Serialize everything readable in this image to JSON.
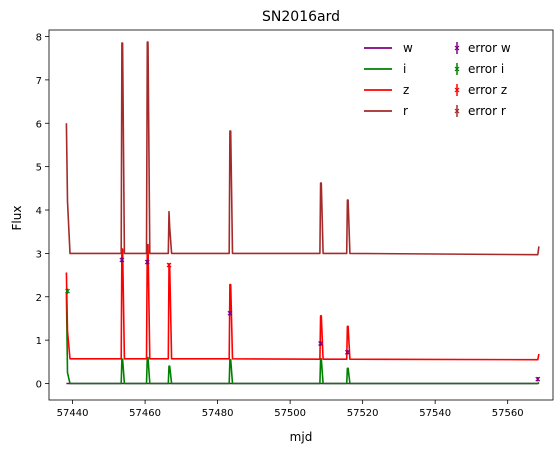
{
  "chart_data": {
    "type": "line",
    "title": "SN2016ard",
    "xlabel": "mjd",
    "ylabel": "Flux",
    "xlim": [
      57433.5,
      57572.5
    ],
    "ylim": [
      -0.38,
      8.15
    ],
    "xticks": [
      57440,
      57460,
      57480,
      57500,
      57520,
      57540,
      57560
    ],
    "yticks": [
      0,
      1,
      2,
      3,
      4,
      5,
      6,
      7,
      8
    ],
    "grid": false,
    "legend_position": "top-right",
    "series": [
      {
        "name": "w",
        "color": "#800080",
        "x": [
          57438.3,
          57439.3,
          57568.3,
          57568.6
        ],
        "y": [
          0.0,
          0.0,
          0.0,
          0.02
        ]
      },
      {
        "name": "i",
        "color": "#008000",
        "x": [
          57438.3,
          57438.6,
          57439.3,
          57453.4,
          57453.6,
          57453.8,
          57454.3,
          57460.4,
          57460.6,
          57460.8,
          57461.3,
          57466.4,
          57466.6,
          57466.8,
          57467.3,
          57483.2,
          57483.4,
          57483.6,
          57484.1,
          57508.2,
          57508.4,
          57508.6,
          57509.1,
          57515.6,
          57515.8,
          57516.0,
          57516.5,
          57568.3,
          57568.6
        ],
        "y": [
          2.1,
          0.25,
          0.0,
          0.0,
          0.56,
          0.56,
          0.0,
          0.0,
          0.6,
          0.6,
          0.0,
          0.0,
          0.4,
          0.4,
          0.0,
          0.0,
          0.55,
          0.55,
          0.0,
          0.0,
          0.57,
          0.57,
          0.0,
          0.0,
          0.35,
          0.35,
          0.0,
          0.0,
          0.02
        ]
      },
      {
        "name": "z",
        "color": "#ff0000",
        "x": [
          57438.3,
          57438.6,
          57439.3,
          57453.4,
          57453.6,
          57453.8,
          57454.3,
          57460.4,
          57460.6,
          57460.8,
          57461.3,
          57466.4,
          57466.6,
          57466.8,
          57467.3,
          57483.2,
          57483.4,
          57483.6,
          57484.1,
          57508.2,
          57508.4,
          57508.6,
          57509.1,
          57515.6,
          57515.8,
          57516.0,
          57516.5,
          57568.3,
          57568.6
        ],
        "y": [
          2.56,
          1.2,
          0.57,
          0.57,
          3.1,
          3.1,
          0.57,
          0.57,
          3.2,
          3.2,
          0.57,
          0.57,
          2.7,
          2.7,
          0.57,
          0.57,
          2.28,
          2.28,
          0.57,
          0.56,
          1.56,
          1.56,
          0.56,
          0.56,
          1.32,
          1.32,
          0.56,
          0.55,
          0.68
        ]
      },
      {
        "name": "r",
        "color": "#a52a2a",
        "x": [
          57438.3,
          57438.6,
          57439.3,
          57453.4,
          57453.6,
          57453.8,
          57454.3,
          57460.4,
          57460.6,
          57460.8,
          57461.3,
          57466.4,
          57466.6,
          57466.8,
          57467.3,
          57483.2,
          57483.4,
          57483.6,
          57484.1,
          57508.2,
          57508.4,
          57508.6,
          57509.1,
          57515.6,
          57515.8,
          57516.0,
          57516.5,
          57568.3,
          57568.6
        ],
        "y": [
          6.0,
          4.2,
          3.0,
          3.0,
          7.85,
          7.85,
          3.0,
          3.0,
          7.87,
          7.87,
          3.0,
          3.0,
          3.96,
          3.6,
          3.0,
          3.0,
          5.82,
          5.82,
          3.0,
          3.0,
          4.62,
          4.62,
          3.0,
          3.0,
          4.23,
          4.23,
          3.0,
          2.97,
          3.16
        ]
      }
    ],
    "error_series": [
      {
        "name": "error w",
        "color": "#800080",
        "points": [
          {
            "x": 57453.6,
            "y": 2.85,
            "err": 0.06
          },
          {
            "x": 57460.6,
            "y": 2.8,
            "err": 0.06
          },
          {
            "x": 57483.4,
            "y": 1.62,
            "err": 0.05
          },
          {
            "x": 57508.4,
            "y": 0.92,
            "err": 0.05
          },
          {
            "x": 57515.8,
            "y": 0.72,
            "err": 0.05
          },
          {
            "x": 57568.3,
            "y": 0.1,
            "err": 0.05
          }
        ]
      },
      {
        "name": "error i",
        "color": "#008000",
        "points": [
          {
            "x": 57438.6,
            "y": 2.13,
            "err": 0.06
          }
        ]
      },
      {
        "name": "error z",
        "color": "#ff0000",
        "points": [
          {
            "x": 57466.6,
            "y": 2.73,
            "err": 0.05
          }
        ]
      },
      {
        "name": "error r",
        "color": "#a52a2a",
        "points": []
      }
    ]
  }
}
